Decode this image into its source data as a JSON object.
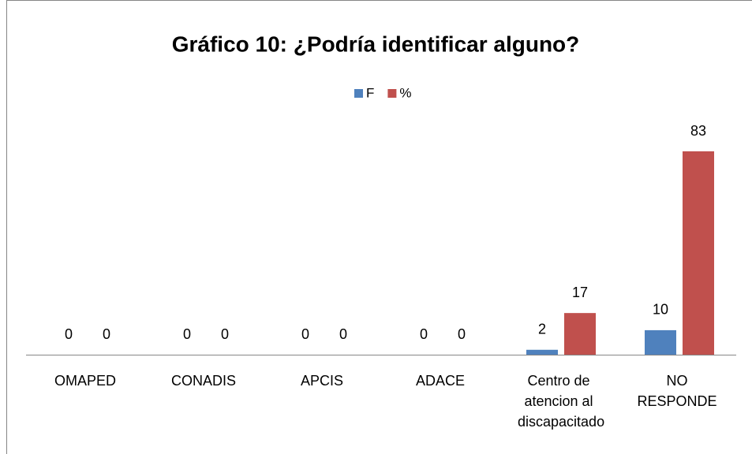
{
  "chart_data": {
    "type": "bar",
    "title": "Gráfico 10: ¿Podría identificar alguno?",
    "categories": [
      "OMAPED",
      "CONADIS",
      "APCIS",
      "ADACE",
      "Centro de atencion al discapacitado",
      "NO RESPONDE"
    ],
    "series": [
      {
        "name": "F",
        "color": "#4f81bd",
        "values": [
          0,
          0,
          0,
          0,
          2,
          10
        ]
      },
      {
        "name": "%",
        "color": "#c0504d",
        "values": [
          0,
          0,
          0,
          0,
          17,
          83
        ]
      }
    ],
    "legend": "top"
  }
}
